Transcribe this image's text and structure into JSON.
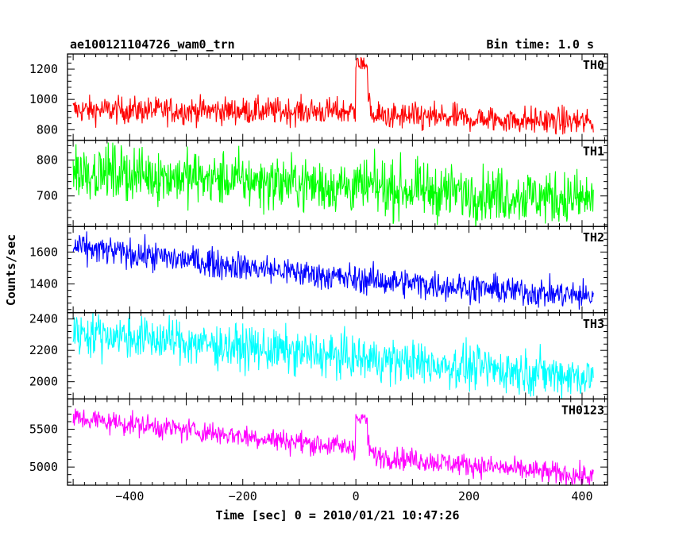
{
  "header": {
    "title": "ae100121104726_wam0_trn",
    "bin_time": "Bin time: 1.0 s"
  },
  "chart_data": {
    "type": "line",
    "xlabel": "Time [sec] 0 = 2010/01/21 10:47:26",
    "ylabel": "Counts/sec",
    "xlim": [
      -510,
      445
    ],
    "x_ticks": [
      -400,
      -200,
      0,
      200,
      400
    ],
    "x_range_data": [
      -500,
      420
    ],
    "panels": [
      {
        "name": "TH0",
        "color": "#ff0000",
        "ylim": [
          730,
          1300
        ],
        "y_ticks": [
          800,
          1000,
          1200
        ],
        "baseline": [
          [
            -500,
            930
          ],
          [
            0,
            920
          ],
          [
            10,
            1160
          ],
          [
            30,
            890
          ],
          [
            420,
            850
          ]
        ],
        "noise": 45,
        "burst": {
          "x": [
            0,
            20
          ],
          "peak": 1280
        }
      },
      {
        "name": "TH1",
        "color": "#00ff00",
        "ylim": [
          615,
          855
        ],
        "y_ticks": [
          700,
          800
        ],
        "baseline": [
          [
            -500,
            770
          ],
          [
            0,
            725
          ],
          [
            420,
            690
          ]
        ],
        "noise": 38
      },
      {
        "name": "TH2",
        "color": "#0000ff",
        "ylim": [
          1220,
          1760
        ],
        "y_ticks": [
          1400,
          1600
        ],
        "baseline": [
          [
            -500,
            1630
          ],
          [
            0,
            1430
          ],
          [
            420,
            1320
          ]
        ],
        "noise": 45
      },
      {
        "name": "TH3",
        "color": "#00ffff",
        "ylim": [
          1890,
          2440
        ],
        "y_ticks": [
          2000,
          2200,
          2400
        ],
        "baseline": [
          [
            -500,
            2320
          ],
          [
            0,
            2150
          ],
          [
            420,
            2030
          ]
        ],
        "noise": 70
      },
      {
        "name": "TH0123",
        "color": "#ff00ff",
        "ylim": [
          4760,
          5900
        ],
        "y_ticks": [
          5000,
          5500
        ],
        "baseline": [
          [
            -500,
            5650
          ],
          [
            0,
            5250
          ],
          [
            10,
            5560
          ],
          [
            30,
            5150
          ],
          [
            420,
            4870
          ]
        ],
        "noise": 75,
        "burst": {
          "x": [
            0,
            20
          ],
          "peak": 5700
        }
      }
    ]
  }
}
